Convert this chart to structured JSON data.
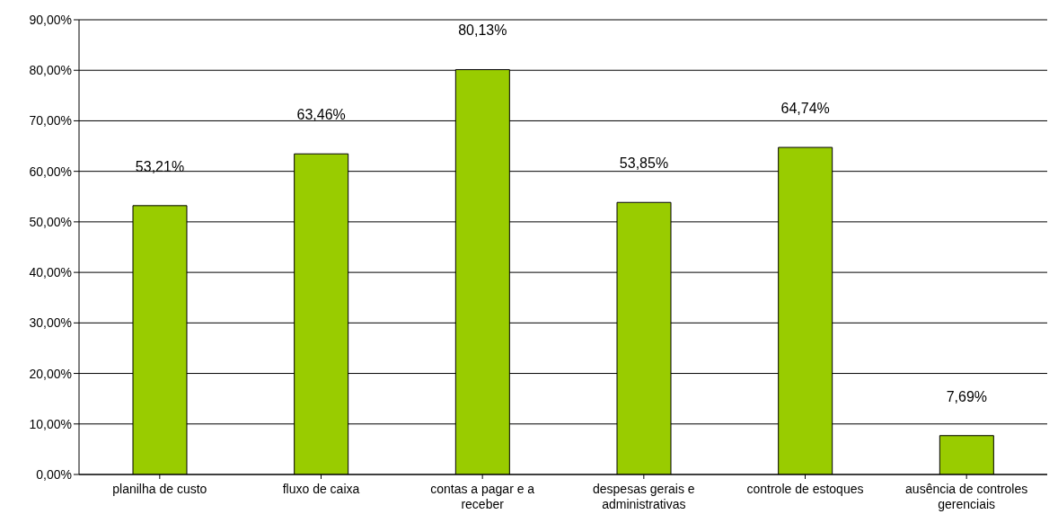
{
  "chart_data": {
    "type": "bar",
    "categories": [
      "planilha de custo",
      "fluxo de caixa",
      "contas a pagar e a receber",
      "despesas gerais e administrativas",
      "controle de estoques",
      "ausência de controles gerenciais"
    ],
    "values": [
      53.21,
      63.46,
      80.13,
      53.85,
      64.74,
      7.69
    ],
    "value_labels": [
      "53,21%",
      "63,46%",
      "80,13%",
      "53,85%",
      "64,74%",
      "7,69%"
    ],
    "color": "#99cc00",
    "ylim": [
      0,
      90
    ],
    "yticks": [
      {
        "value": 0,
        "label": "0,00%"
      },
      {
        "value": 10,
        "label": "10,00%"
      },
      {
        "value": 20,
        "label": "20,00%"
      },
      {
        "value": 30,
        "label": "30,00%"
      },
      {
        "value": 40,
        "label": "40,00%"
      },
      {
        "value": 50,
        "label": "50,00%"
      },
      {
        "value": 60,
        "label": "60,00%"
      },
      {
        "value": 70,
        "label": "70,00%"
      },
      {
        "value": 80,
        "label": "80,00%"
      },
      {
        "value": 90,
        "label": "90,00%"
      }
    ],
    "grid": "y"
  }
}
